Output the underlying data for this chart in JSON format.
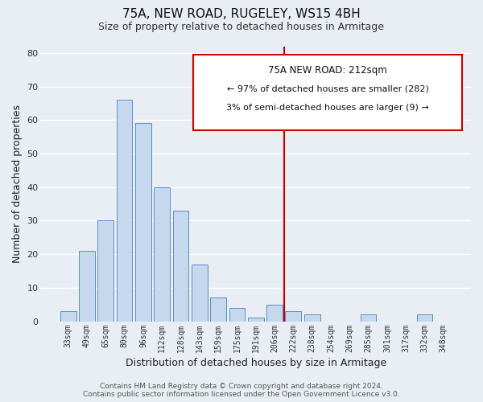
{
  "title": "75A, NEW ROAD, RUGELEY, WS15 4BH",
  "subtitle": "Size of property relative to detached houses in Armitage",
  "xlabel": "Distribution of detached houses by size in Armitage",
  "ylabel": "Number of detached properties",
  "bar_labels": [
    "33sqm",
    "49sqm",
    "65sqm",
    "80sqm",
    "96sqm",
    "112sqm",
    "128sqm",
    "143sqm",
    "159sqm",
    "175sqm",
    "191sqm",
    "206sqm",
    "222sqm",
    "238sqm",
    "254sqm",
    "269sqm",
    "285sqm",
    "301sqm",
    "317sqm",
    "332sqm",
    "348sqm"
  ],
  "bar_values": [
    3,
    21,
    30,
    66,
    59,
    40,
    33,
    17,
    7,
    4,
    1,
    5,
    3,
    2,
    0,
    0,
    2,
    0,
    0,
    2,
    0
  ],
  "bar_color": "#c5d8ee",
  "bar_edge_color": "#5b8fc9",
  "vline_bar_index": 11,
  "vline_color": "#cc0000",
  "ylim": [
    0,
    82
  ],
  "yticks": [
    0,
    10,
    20,
    30,
    40,
    50,
    60,
    70,
    80
  ],
  "annotation_title": "75A NEW ROAD: 212sqm",
  "annotation_line1": "← 97% of detached houses are smaller (282)",
  "annotation_line2": "3% of semi-detached houses are larger (9) →",
  "footer_line1": "Contains HM Land Registry data © Crown copyright and database right 2024.",
  "footer_line2": "Contains public sector information licensed under the Open Government Licence v3.0.",
  "background_color": "#e8eef4",
  "grid_color": "#ffffff"
}
